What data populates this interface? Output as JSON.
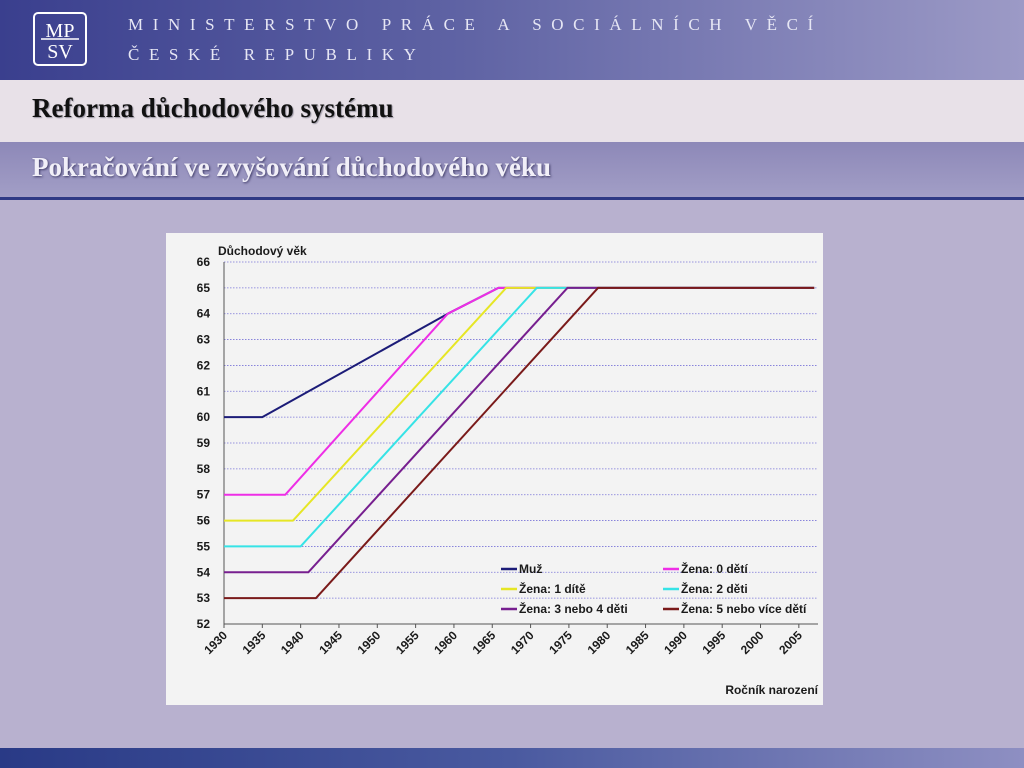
{
  "header": {
    "logo_text": "MPSV",
    "ministry_line1": "MINISTERSTVO PRÁCE A SOCIÁLNÍCH VĚCÍ",
    "ministry_line2": "ČESKÉ REPUBLIKY"
  },
  "slide": {
    "title": "Reforma důchodového systému",
    "subtitle": "Pokračování ve zvyšování důchodového věku"
  },
  "colors": {
    "muz": "#1c1c78",
    "zena0": "#ee2ee6",
    "zena1": "#e6e625",
    "zena2": "#36e3e6",
    "zena34": "#771f8f",
    "zena5": "#7a1a1a",
    "grid": "#7a74d8"
  },
  "chart_data": {
    "type": "line",
    "title": "",
    "ylabel": "Důchodový věk",
    "xlabel": "Ročník narození",
    "ylim": [
      52,
      66
    ],
    "xlim": [
      1930,
      2007.5
    ],
    "grid": true,
    "legend_position": "lower-right",
    "yticks": [
      52,
      53,
      54,
      55,
      56,
      57,
      58,
      59,
      60,
      61,
      62,
      63,
      64,
      65,
      66
    ],
    "xticks": [
      1930,
      1935,
      1940,
      1945,
      1950,
      1955,
      1960,
      1965,
      1970,
      1975,
      1980,
      1985,
      1990,
      1995,
      2000,
      2005
    ],
    "series": [
      {
        "name": "Muž",
        "color_key": "muz",
        "x": [
          1930,
          1935,
          1959.2,
          1965.8,
          2007
        ],
        "y": [
          60,
          60,
          64,
          65,
          65
        ]
      },
      {
        "name": "Žena: 0 dětí",
        "color_key": "zena0",
        "x": [
          1930,
          1938,
          1959.2,
          1965.8,
          2007
        ],
        "y": [
          57,
          57,
          64,
          65,
          65
        ]
      },
      {
        "name": "Žena: 1 dítě",
        "color_key": "zena1",
        "x": [
          1930,
          1939,
          1966.8,
          2007
        ],
        "y": [
          56,
          56,
          65,
          65
        ]
      },
      {
        "name": "Žena: 2 děti",
        "color_key": "zena2",
        "x": [
          1930,
          1940,
          1970.8,
          2007
        ],
        "y": [
          55,
          55,
          65,
          65
        ]
      },
      {
        "name": "Žena: 3 nebo 4 děti",
        "color_key": "zena34",
        "x": [
          1930,
          1941,
          1974.8,
          2007
        ],
        "y": [
          54,
          54,
          65,
          65
        ]
      },
      {
        "name": "Žena: 5 nebo více dětí",
        "color_key": "zena5",
        "x": [
          1930,
          1942,
          1978.8,
          2007
        ],
        "y": [
          53,
          53,
          65,
          65
        ]
      }
    ]
  }
}
